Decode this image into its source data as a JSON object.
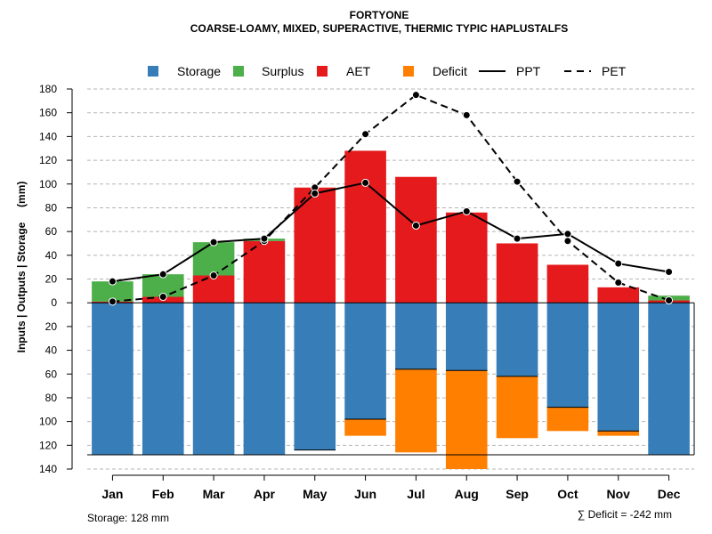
{
  "chart_data": {
    "type": "bar",
    "title": "FORTYONE",
    "subtitle": "COARSE-LOAMY, MIXED, SUPERACTIVE, THERMIC TYPIC HAPLUSTALFS",
    "ylabel": "Inputs | Outputs | Storage     (mm)",
    "categories": [
      "Jan",
      "Feb",
      "Mar",
      "Apr",
      "May",
      "Jun",
      "Jul",
      "Aug",
      "Sep",
      "Oct",
      "Nov",
      "Dec"
    ],
    "ylim": [
      -140,
      180
    ],
    "y_ticks": [
      180,
      160,
      140,
      120,
      100,
      80,
      60,
      40,
      20,
      0,
      -20,
      -40,
      -60,
      -80,
      -100,
      -120,
      -140
    ],
    "y_tick_labels": [
      "180",
      "160",
      "140",
      "120",
      "100",
      "80",
      "60",
      "40",
      "20",
      "0",
      "20",
      "40",
      "60",
      "80",
      "100",
      "120",
      "140"
    ],
    "grid": true,
    "legend_position": "top",
    "legend": [
      {
        "name": "Storage",
        "kind": "square",
        "color": "#377EB8"
      },
      {
        "name": "Surplus",
        "kind": "square",
        "color": "#4DAF4A"
      },
      {
        "name": "AET",
        "kind": "square",
        "color": "#E41A1C"
      },
      {
        "name": "Deficit",
        "kind": "square",
        "color": "#FF7F00"
      },
      {
        "name": "PPT",
        "kind": "solid-line",
        "color": "#000000"
      },
      {
        "name": "PET",
        "kind": "dashed-line",
        "color": "#000000"
      }
    ],
    "series": [
      {
        "name": "AET",
        "values": [
          1,
          5,
          23,
          52,
          97,
          128,
          106,
          76,
          50,
          32,
          13,
          2
        ]
      },
      {
        "name": "Surplus",
        "values": [
          17,
          19,
          28,
          2,
          0,
          0,
          0,
          0,
          0,
          0,
          0,
          4
        ]
      },
      {
        "name": "Storage",
        "values": [
          128,
          128,
          128,
          128,
          124,
          98,
          56,
          57,
          62,
          88,
          108,
          128
        ]
      },
      {
        "name": "Deficit",
        "values": [
          0,
          0,
          0,
          0,
          0,
          14,
          70,
          83,
          52,
          20,
          4,
          0
        ]
      },
      {
        "name": "PPT",
        "values": [
          18,
          24,
          51,
          54,
          92,
          101,
          65,
          77,
          54,
          58,
          33,
          26
        ]
      },
      {
        "name": "PET",
        "values": [
          1,
          5,
          23,
          52,
          97,
          142,
          175,
          158,
          102,
          52,
          17,
          2
        ]
      }
    ],
    "storage_capacity": 128,
    "storage_label": "Storage: 128 mm",
    "deficit_label": "∑ Deficit = -242 mm"
  }
}
